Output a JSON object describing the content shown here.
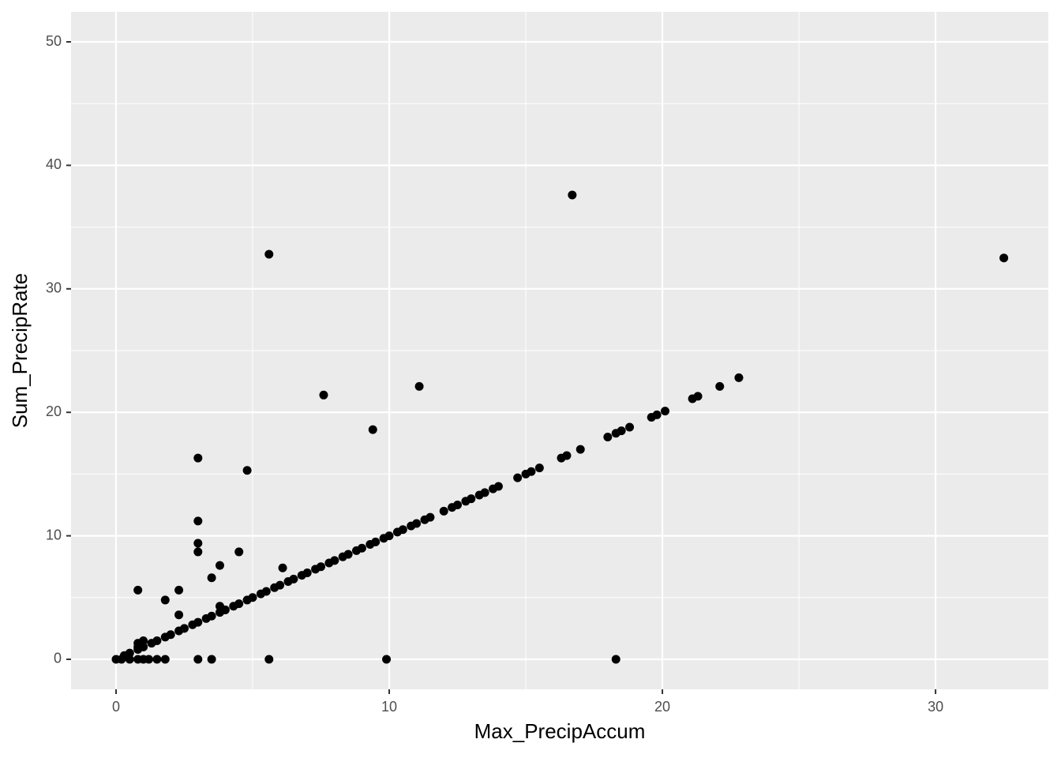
{
  "chart_data": {
    "type": "scatter",
    "x_label": "Max_PrecipAccum",
    "y_label": "Sum_PrecipRate",
    "xlim": [
      -1.647,
      34.13
    ],
    "ylim": [
      -2.43,
      52.43
    ],
    "xticks": [
      0,
      10,
      20,
      30
    ],
    "yticks": [
      0,
      10,
      20,
      30,
      40,
      50
    ],
    "xminor": [
      5,
      15,
      25
    ],
    "yminor": [
      5,
      15,
      25,
      35,
      45
    ],
    "grid": true,
    "color": "#000000",
    "x": [
      0,
      0.3,
      0.5,
      0.8,
      1,
      1.3,
      1.5,
      1.8,
      2,
      2.3,
      2.5,
      2.8,
      3,
      3.3,
      3.5,
      3.8,
      4,
      4.3,
      4.5,
      4.8,
      5,
      5.3,
      5.5,
      5.8,
      6,
      6.3,
      6.5,
      6.8,
      7,
      7.3,
      7.5,
      7.8,
      8,
      8.3,
      8.5,
      8.8,
      9,
      9.3,
      9.5,
      9.8,
      10,
      10.3,
      10.5,
      10.8,
      11,
      11.3,
      11.5,
      12,
      12.3,
      12.5,
      12.8,
      13,
      13.3,
      13.5,
      13.8,
      14,
      14.7,
      15,
      15.2,
      15.5,
      16.3,
      16.5,
      17,
      18,
      18.3,
      18.5,
      18.8,
      19.6,
      19.8,
      20.1,
      21.1,
      21.3,
      22.1,
      22.8,
      0.8,
      1.8,
      2.3,
      2.3,
      3,
      3,
      3,
      3,
      3.5,
      3.8,
      3.8,
      4.5,
      4.8,
      5.6,
      6.1,
      7.6,
      9.4,
      11.1,
      16.7,
      32.5,
      0.2,
      0.5,
      0.8,
      1,
      1.2,
      1.5,
      1.8,
      3,
      3.5,
      5.6,
      9.9,
      18.3,
      0.8,
      1,
      0.8
    ],
    "y": [
      0,
      0.3,
      0.5,
      0.8,
      1,
      1.3,
      1.5,
      1.8,
      2,
      2.3,
      2.5,
      2.8,
      3,
      3.3,
      3.5,
      3.8,
      4,
      4.3,
      4.5,
      4.8,
      5,
      5.3,
      5.5,
      5.8,
      6,
      6.3,
      6.5,
      6.8,
      7,
      7.3,
      7.5,
      7.8,
      8,
      8.3,
      8.5,
      8.8,
      9,
      9.3,
      9.5,
      9.8,
      10,
      10.3,
      10.5,
      10.8,
      11,
      11.3,
      11.5,
      12,
      12.3,
      12.5,
      12.8,
      13,
      13.3,
      13.5,
      13.8,
      14,
      14.7,
      15,
      15.2,
      15.5,
      16.3,
      16.5,
      17,
      18,
      18.3,
      18.5,
      18.8,
      19.6,
      19.8,
      20.1,
      21.1,
      21.3,
      22.1,
      22.8,
      5.6,
      4.8,
      5.6,
      3.6,
      16.3,
      11.2,
      9.4,
      8.7,
      6.6,
      7.6,
      4.3,
      8.7,
      15.3,
      32.8,
      7.4,
      21.4,
      18.6,
      22.1,
      37.6,
      32.5,
      0,
      0,
      0,
      0,
      0,
      0,
      0,
      0,
      0,
      0,
      0,
      0,
      1.3,
      1.5,
      1.0
    ]
  }
}
